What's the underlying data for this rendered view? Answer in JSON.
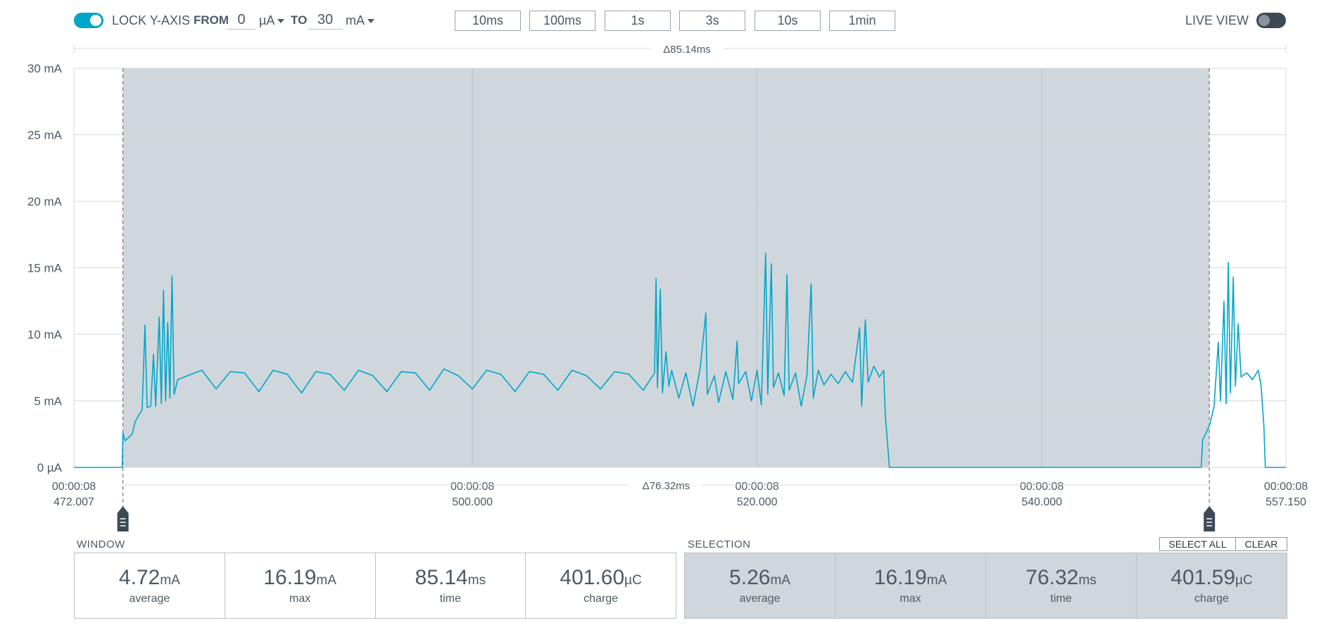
{
  "toolbar": {
    "lock_yaxis": {
      "label": "LOCK Y-AXIS",
      "enabled": true
    },
    "from_label": "FROM",
    "from_value": "0",
    "from_unit": "µA",
    "to_label": "TO",
    "to_value": "30",
    "to_unit": "mA",
    "window_buttons": [
      "10ms",
      "100ms",
      "1s",
      "3s",
      "10s",
      "1min"
    ],
    "live_view": {
      "label": "LIVE VIEW",
      "enabled": false
    }
  },
  "colors": {
    "accent": "#00a6c8",
    "selection_fill": "#cfd7dd",
    "grid": "#d3d8dc",
    "text": "#4d5965"
  },
  "chart_data": {
    "type": "line",
    "window_span_label": "Δ85.14ms",
    "selection_span_label": "Δ76.32ms",
    "y_ticks": [
      "0 µA",
      "5 mA",
      "10 mA",
      "15 mA",
      "20 mA",
      "25 mA",
      "30 mA"
    ],
    "y_tick_values": [
      0,
      5,
      10,
      15,
      20,
      25,
      30
    ],
    "ylim": [
      0,
      30
    ],
    "x_unit_ms_range": [
      472.007,
      557.15
    ],
    "x_ticks": [
      {
        "value": 472.007,
        "line1": "00:00:08",
        "line2": "472.007"
      },
      {
        "value": 500.0,
        "line1": "00:00:08",
        "line2": "500.000"
      },
      {
        "value": 520.0,
        "line1": "00:00:08",
        "line2": "520.000"
      },
      {
        "value": 540.0,
        "line1": "00:00:08",
        "line2": "540.000"
      },
      {
        "value": 557.15,
        "line1": "00:00:08",
        "line2": "557.150"
      }
    ],
    "selection_ms": [
      475.45,
      551.77
    ],
    "series": [
      {
        "color": "#00a6c8",
        "points": [
          [
            472.007,
            0
          ],
          [
            475.4,
            0
          ],
          [
            475.45,
            2.6
          ],
          [
            475.6,
            2.0
          ],
          [
            475.9,
            2.3
          ],
          [
            476.1,
            2.5
          ],
          [
            476.3,
            3.4
          ],
          [
            476.6,
            4.0
          ],
          [
            476.8,
            4.3
          ],
          [
            477.0,
            10.7
          ],
          [
            477.15,
            4.5
          ],
          [
            477.4,
            4.6
          ],
          [
            477.6,
            8.5
          ],
          [
            477.75,
            4.6
          ],
          [
            478.0,
            11.3
          ],
          [
            478.15,
            4.8
          ],
          [
            478.3,
            13.3
          ],
          [
            478.45,
            5.0
          ],
          [
            478.6,
            10.9
          ],
          [
            478.75,
            5.2
          ],
          [
            478.9,
            14.4
          ],
          [
            479.05,
            5.5
          ],
          [
            479.3,
            6.6
          ],
          [
            480.0,
            6.9
          ],
          [
            481.0,
            7.3
          ],
          [
            482.0,
            5.9
          ],
          [
            483.0,
            7.2
          ],
          [
            484.0,
            7.1
          ],
          [
            485.0,
            5.7
          ],
          [
            486.0,
            7.3
          ],
          [
            487.0,
            7.0
          ],
          [
            488.0,
            5.6
          ],
          [
            489.0,
            7.2
          ],
          [
            490.0,
            7.0
          ],
          [
            491.0,
            5.8
          ],
          [
            492.0,
            7.3
          ],
          [
            493.0,
            6.9
          ],
          [
            494.0,
            5.7
          ],
          [
            495.0,
            7.2
          ],
          [
            496.0,
            7.1
          ],
          [
            497.0,
            5.8
          ],
          [
            498.0,
            7.4
          ],
          [
            499.0,
            6.9
          ],
          [
            500.0,
            5.9
          ],
          [
            501.0,
            7.3
          ],
          [
            502.0,
            7.0
          ],
          [
            503.0,
            5.7
          ],
          [
            504.0,
            7.2
          ],
          [
            505.0,
            7.0
          ],
          [
            506.0,
            5.8
          ],
          [
            507.0,
            7.3
          ],
          [
            508.0,
            6.9
          ],
          [
            509.0,
            5.9
          ],
          [
            510.0,
            7.2
          ],
          [
            511.0,
            7.0
          ],
          [
            512.0,
            5.8
          ],
          [
            512.8,
            7.1
          ],
          [
            512.9,
            14.2
          ],
          [
            513.0,
            6.0
          ],
          [
            513.2,
            13.4
          ],
          [
            513.35,
            5.6
          ],
          [
            513.6,
            8.7
          ],
          [
            513.8,
            6.1
          ],
          [
            514.0,
            7.3
          ],
          [
            514.5,
            5.2
          ],
          [
            515.0,
            7.1
          ],
          [
            515.5,
            4.6
          ],
          [
            516.0,
            7.4
          ],
          [
            516.4,
            11.6
          ],
          [
            516.5,
            5.5
          ],
          [
            517.0,
            6.9
          ],
          [
            517.3,
            4.9
          ],
          [
            517.8,
            7.2
          ],
          [
            518.3,
            5.1
          ],
          [
            518.6,
            9.5
          ],
          [
            518.7,
            6.3
          ],
          [
            519.2,
            7.2
          ],
          [
            519.6,
            5.0
          ],
          [
            520.0,
            7.3
          ],
          [
            520.3,
            4.7
          ],
          [
            520.6,
            16.1
          ],
          [
            520.75,
            5.5
          ],
          [
            521.0,
            15.3
          ],
          [
            521.15,
            6.0
          ],
          [
            521.5,
            7.1
          ],
          [
            521.9,
            5.4
          ],
          [
            522.1,
            14.5
          ],
          [
            522.25,
            5.8
          ],
          [
            522.7,
            7.1
          ],
          [
            523.1,
            4.6
          ],
          [
            523.5,
            6.9
          ],
          [
            523.8,
            13.8
          ],
          [
            523.95,
            5.2
          ],
          [
            524.3,
            7.3
          ],
          [
            524.7,
            6.2
          ],
          [
            525.2,
            7.0
          ],
          [
            525.7,
            6.3
          ],
          [
            526.2,
            7.2
          ],
          [
            526.7,
            6.4
          ],
          [
            527.2,
            10.5
          ],
          [
            527.35,
            4.6
          ],
          [
            527.6,
            11.1
          ],
          [
            527.8,
            6.4
          ],
          [
            528.2,
            7.6
          ],
          [
            528.6,
            6.8
          ],
          [
            528.9,
            7.3
          ],
          [
            529.0,
            4.0
          ],
          [
            529.3,
            0
          ],
          [
            551.2,
            0
          ],
          [
            551.3,
            2.1
          ],
          [
            551.5,
            2.5
          ],
          [
            551.8,
            3.2
          ],
          [
            552.1,
            4.6
          ],
          [
            552.4,
            9.4
          ],
          [
            552.55,
            5.0
          ],
          [
            552.8,
            12.5
          ],
          [
            552.95,
            4.8
          ],
          [
            553.1,
            15.4
          ],
          [
            553.25,
            5.6
          ],
          [
            553.45,
            14.3
          ],
          [
            553.6,
            6.1
          ],
          [
            553.8,
            10.8
          ],
          [
            554.0,
            6.8
          ],
          [
            554.4,
            7.1
          ],
          [
            554.8,
            6.6
          ],
          [
            555.2,
            7.3
          ],
          [
            555.4,
            6.2
          ],
          [
            555.6,
            3.1
          ],
          [
            555.7,
            0
          ],
          [
            557.15,
            0
          ]
        ]
      }
    ]
  },
  "window_panel": {
    "label": "WINDOW",
    "stats": [
      {
        "value": "4.72",
        "unit": "mA",
        "caption": "average"
      },
      {
        "value": "16.19",
        "unit": "mA",
        "caption": "max"
      },
      {
        "value": "85.14",
        "unit": "ms",
        "caption": "time"
      },
      {
        "value": "401.60",
        "unit": "µC",
        "caption": "charge"
      }
    ]
  },
  "selection_panel": {
    "label": "SELECTION",
    "select_all_label": "SELECT ALL",
    "clear_label": "CLEAR",
    "stats": [
      {
        "value": "5.26",
        "unit": "mA",
        "caption": "average"
      },
      {
        "value": "16.19",
        "unit": "mA",
        "caption": "max"
      },
      {
        "value": "76.32",
        "unit": "ms",
        "caption": "time"
      },
      {
        "value": "401.59",
        "unit": "µC",
        "caption": "charge"
      }
    ]
  }
}
